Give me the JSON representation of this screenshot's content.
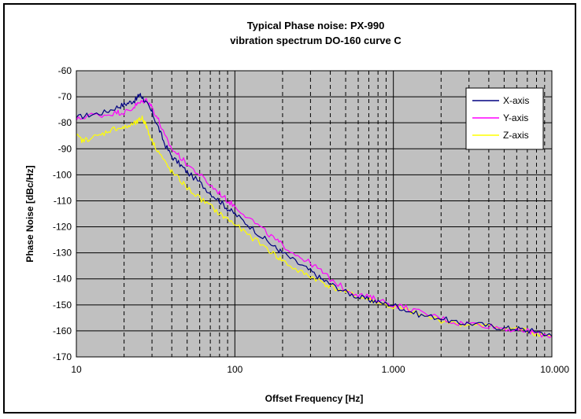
{
  "chart_data": {
    "type": "line",
    "title_lines": [
      "Typical Phase noise: PX-990",
      "vibration spectrum DO-160 curve C"
    ],
    "xlabel": "Offset Frequency [Hz]",
    "ylabel": "Phase Noise [dBc/Hz]",
    "x_scale": "log",
    "xlim": [
      10,
      10000
    ],
    "ylim": [
      -170,
      -60
    ],
    "x_ticks": [
      10,
      100,
      1000,
      10000
    ],
    "x_tick_labels": [
      "10",
      "100",
      "1.000",
      "10.000"
    ],
    "y_ticks": [
      -60,
      -70,
      -80,
      -90,
      -100,
      -110,
      -120,
      -130,
      -140,
      -150,
      -160,
      -170
    ],
    "y_tick_labels": [
      "-60",
      "-70",
      "-80",
      "-90",
      "-100",
      "-110",
      "-120",
      "-130",
      "-140",
      "-150",
      "-160",
      "-170"
    ],
    "grid": "major solid, minor dashed",
    "plot_background": "#c0c0c0",
    "legend_position": "top-right",
    "series": [
      {
        "name": "X-axis",
        "color": "#000080",
        "x": [
          10,
          12,
          15,
          18,
          20,
          22,
          24,
          25,
          26,
          28,
          30,
          33,
          36,
          40,
          45,
          50,
          60,
          70,
          80,
          90,
          100,
          120,
          150,
          180,
          200,
          250,
          300,
          350,
          400,
          500,
          600,
          700,
          800,
          1000,
          1200,
          1500,
          2000,
          2500,
          3000,
          4000,
          5000,
          6000,
          7000,
          8000,
          10000
        ],
        "y": [
          -78,
          -77,
          -76,
          -74,
          -73,
          -72,
          -71,
          -69,
          -70,
          -73,
          -76,
          -82,
          -88,
          -93,
          -96,
          -99,
          -103,
          -107,
          -110,
          -113,
          -115,
          -119,
          -124,
          -128,
          -130,
          -134,
          -137,
          -140,
          -142,
          -145,
          -147,
          -148,
          -149,
          -150,
          -152,
          -154,
          -155,
          -157,
          -157,
          -158,
          -159,
          -159,
          -160,
          -160,
          -162
        ]
      },
      {
        "name": "Y-axis",
        "color": "#ff00ff",
        "x": [
          10,
          12,
          15,
          18,
          20,
          22,
          24,
          26,
          28,
          30,
          33,
          36,
          40,
          45,
          50,
          60,
          70,
          80,
          90,
          100,
          120,
          150,
          180,
          200,
          250,
          300,
          350,
          400,
          500,
          600,
          700,
          800,
          1000,
          1200,
          1500,
          2000,
          2500,
          3000,
          4000,
          5000,
          6000,
          7000,
          8000,
          10000
        ],
        "y": [
          -79,
          -77,
          -77,
          -76,
          -76,
          -75,
          -73,
          -72,
          -71,
          -74,
          -79,
          -85,
          -90,
          -93,
          -96,
          -100,
          -104,
          -107,
          -110,
          -112,
          -116,
          -121,
          -125,
          -127,
          -131,
          -134,
          -137,
          -140,
          -144,
          -146,
          -147,
          -148,
          -150,
          -151,
          -153,
          -155,
          -157,
          -157,
          -158,
          -159,
          -160,
          -160,
          -161,
          -162
        ]
      },
      {
        "name": "Z-axis",
        "color": "#ffff00",
        "x": [
          10,
          11,
          12,
          14,
          16,
          18,
          20,
          22,
          24,
          25,
          26,
          27,
          28,
          30,
          33,
          36,
          40,
          45,
          50,
          60,
          70,
          80,
          90,
          100,
          120,
          150,
          180,
          200,
          250,
          300,
          350,
          400,
          500,
          600,
          700,
          800,
          1000,
          1200,
          1500,
          2000,
          2500,
          3000,
          4000,
          5000,
          6000,
          7000,
          8000,
          10000
        ],
        "y": [
          -85,
          -87,
          -86,
          -85,
          -83,
          -82,
          -82,
          -81,
          -80,
          -79,
          -78,
          -80,
          -82,
          -87,
          -91,
          -95,
          -99,
          -102,
          -105,
          -109,
          -112,
          -115,
          -117,
          -119,
          -123,
          -127,
          -131,
          -133,
          -137,
          -139,
          -141,
          -143,
          -145,
          -147,
          -148,
          -149,
          -151,
          -152,
          -154,
          -156,
          -157,
          -158,
          -158,
          -159,
          -159,
          -160,
          -161,
          -162
        ]
      }
    ]
  }
}
